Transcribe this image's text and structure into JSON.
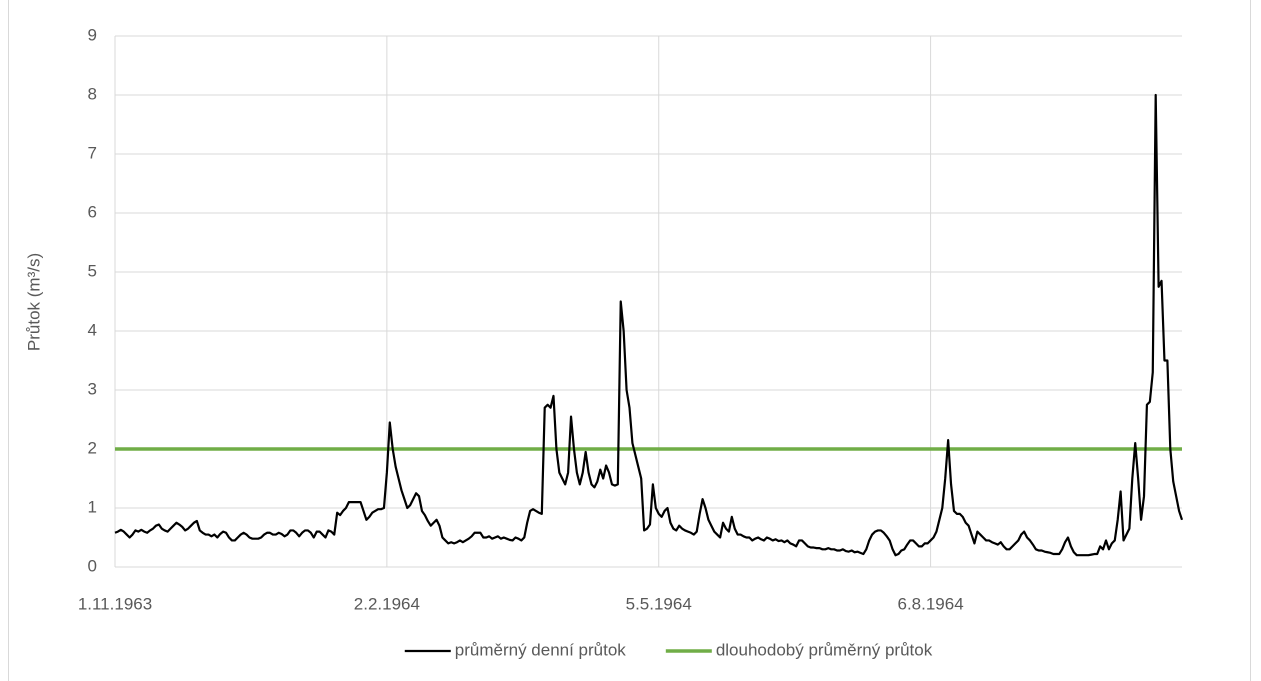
{
  "chart_data": {
    "type": "line",
    "y_label": "Průtok (m³/s)",
    "categories": [
      "1.11.1963",
      null,
      null,
      null,
      null,
      null,
      null,
      null,
      null,
      null,
      null,
      null,
      null,
      null,
      null,
      null,
      null,
      null,
      null,
      null,
      null,
      null,
      null,
      null,
      null,
      null,
      null,
      null,
      null,
      null,
      null,
      null,
      null,
      null,
      null,
      null,
      null,
      null,
      null,
      null,
      null,
      null,
      null,
      null,
      null,
      null,
      null,
      null,
      null,
      null,
      null,
      null,
      null,
      null,
      null,
      null,
      null,
      null,
      null,
      null,
      null,
      null,
      null,
      null,
      null,
      null,
      null,
      null,
      null,
      null,
      null,
      null,
      null,
      null,
      null,
      null,
      null,
      null,
      null,
      null,
      null,
      null,
      null,
      null,
      null,
      null,
      null,
      null,
      null,
      null,
      null,
      null,
      null,
      "2.2.1964",
      null,
      null,
      null,
      null,
      null,
      null,
      null,
      null,
      null,
      null,
      null,
      null,
      null,
      null,
      null,
      null,
      null,
      null,
      null,
      null,
      null,
      null,
      null,
      null,
      null,
      null,
      null,
      null,
      null,
      null,
      null,
      null,
      null,
      null,
      null,
      null,
      null,
      null,
      null,
      null,
      null,
      null,
      null,
      null,
      null,
      null,
      null,
      null,
      null,
      null,
      null,
      null,
      null,
      null,
      null,
      null,
      null,
      null,
      null,
      null,
      null,
      null,
      null,
      null,
      null,
      null,
      null,
      null,
      null,
      null,
      null,
      null,
      null,
      null,
      null,
      null,
      null,
      null,
      null,
      null,
      null,
      null,
      null,
      null,
      null,
      null,
      null,
      null,
      null,
      null,
      null,
      null,
      "5.5.1964",
      null,
      null,
      null,
      null,
      null,
      null,
      null,
      null,
      null,
      null,
      null,
      null,
      null,
      null,
      null,
      null,
      null,
      null,
      null,
      null,
      null,
      null,
      null,
      null,
      null,
      null,
      null,
      null,
      null,
      null,
      null,
      null,
      null,
      null,
      null,
      null,
      null,
      null,
      null,
      null,
      null,
      null,
      null,
      null,
      null,
      null,
      null,
      null,
      null,
      null,
      null,
      null,
      null,
      null,
      null,
      null,
      null,
      null,
      null,
      null,
      null,
      null,
      null,
      null,
      null,
      null,
      null,
      null,
      null,
      null,
      null,
      null,
      null,
      null,
      null,
      null,
      null,
      null,
      null,
      null,
      null,
      null,
      null,
      null,
      null,
      null,
      null,
      null,
      null,
      null,
      null,
      null,
      "6.8.1964",
      null,
      null,
      null,
      null,
      null,
      null,
      null,
      null,
      null,
      null,
      null,
      null,
      null,
      null,
      null,
      null,
      null,
      null,
      null,
      null,
      null,
      null,
      null,
      null,
      null,
      null,
      null,
      null,
      null,
      null,
      null,
      null,
      null,
      null,
      null,
      null,
      null,
      null,
      null,
      null,
      null,
      null,
      null,
      null,
      null,
      null,
      null,
      null,
      null,
      null,
      null,
      null,
      null,
      null,
      null,
      null,
      null,
      null,
      null,
      null,
      null,
      null,
      null,
      null,
      null,
      null,
      null,
      null,
      null,
      null,
      null,
      null,
      null,
      null,
      null,
      null,
      null,
      null,
      null,
      null,
      null,
      null,
      null,
      null,
      null,
      null
    ],
    "series": [
      {
        "name": "průměrný denní průtok",
        "color": "#000000",
        "values": [
          0.58,
          0.6,
          0.63,
          0.6,
          0.55,
          0.5,
          0.55,
          0.62,
          0.6,
          0.63,
          0.6,
          0.58,
          0.62,
          0.65,
          0.7,
          0.72,
          0.65,
          0.62,
          0.6,
          0.65,
          0.7,
          0.75,
          0.72,
          0.68,
          0.62,
          0.65,
          0.7,
          0.75,
          0.78,
          0.62,
          0.58,
          0.55,
          0.55,
          0.52,
          0.55,
          0.5,
          0.56,
          0.6,
          0.58,
          0.5,
          0.45,
          0.45,
          0.5,
          0.55,
          0.58,
          0.55,
          0.5,
          0.48,
          0.48,
          0.48,
          0.5,
          0.55,
          0.58,
          0.58,
          0.55,
          0.55,
          0.58,
          0.56,
          0.52,
          0.55,
          0.62,
          0.62,
          0.58,
          0.52,
          0.58,
          0.62,
          0.62,
          0.58,
          0.5,
          0.6,
          0.6,
          0.55,
          0.5,
          0.62,
          0.6,
          0.55,
          0.92,
          0.88,
          0.95,
          1.0,
          1.1,
          1.1,
          1.1,
          1.1,
          1.1,
          0.95,
          0.8,
          0.85,
          0.92,
          0.95,
          0.98,
          0.98,
          1.0,
          1.6,
          2.45,
          2.0,
          1.7,
          1.5,
          1.3,
          1.15,
          1.0,
          1.05,
          1.15,
          1.25,
          1.2,
          0.95,
          0.88,
          0.78,
          0.7,
          0.75,
          0.8,
          0.7,
          0.5,
          0.45,
          0.4,
          0.42,
          0.4,
          0.42,
          0.45,
          0.42,
          0.45,
          0.48,
          0.52,
          0.58,
          0.58,
          0.58,
          0.5,
          0.5,
          0.52,
          0.48,
          0.5,
          0.52,
          0.48,
          0.5,
          0.48,
          0.46,
          0.45,
          0.5,
          0.48,
          0.45,
          0.5,
          0.75,
          0.95,
          0.98,
          0.95,
          0.92,
          0.9,
          2.7,
          2.75,
          2.7,
          2.9,
          2.0,
          1.6,
          1.5,
          1.4,
          1.6,
          2.55,
          2.0,
          1.6,
          1.4,
          1.6,
          1.95,
          1.6,
          1.4,
          1.35,
          1.45,
          1.65,
          1.5,
          1.72,
          1.6,
          1.4,
          1.38,
          1.4,
          4.5,
          4.0,
          3.0,
          2.7,
          2.1,
          1.9,
          1.7,
          1.5,
          0.62,
          0.65,
          0.72,
          1.4,
          1.0,
          0.9,
          0.85,
          0.95,
          1.0,
          0.75,
          0.65,
          0.62,
          0.7,
          0.65,
          0.62,
          0.6,
          0.58,
          0.55,
          0.6,
          0.9,
          1.15,
          1.0,
          0.8,
          0.7,
          0.6,
          0.55,
          0.5,
          0.75,
          0.65,
          0.6,
          0.85,
          0.65,
          0.55,
          0.55,
          0.52,
          0.5,
          0.5,
          0.45,
          0.48,
          0.5,
          0.47,
          0.45,
          0.5,
          0.48,
          0.45,
          0.47,
          0.44,
          0.45,
          0.42,
          0.45,
          0.4,
          0.38,
          0.35,
          0.45,
          0.45,
          0.4,
          0.35,
          0.33,
          0.33,
          0.32,
          0.32,
          0.3,
          0.3,
          0.32,
          0.3,
          0.3,
          0.28,
          0.28,
          0.3,
          0.27,
          0.26,
          0.28,
          0.25,
          0.26,
          0.24,
          0.22,
          0.3,
          0.45,
          0.55,
          0.6,
          0.62,
          0.62,
          0.58,
          0.52,
          0.45,
          0.3,
          0.2,
          0.22,
          0.28,
          0.3,
          0.38,
          0.45,
          0.45,
          0.4,
          0.35,
          0.35,
          0.4,
          0.4,
          0.45,
          0.5,
          0.6,
          0.8,
          1.0,
          1.5,
          2.15,
          1.4,
          0.95,
          0.9,
          0.9,
          0.85,
          0.75,
          0.7,
          0.55,
          0.4,
          0.6,
          0.55,
          0.5,
          0.45,
          0.45,
          0.42,
          0.4,
          0.38,
          0.42,
          0.35,
          0.3,
          0.3,
          0.35,
          0.4,
          0.45,
          0.55,
          0.6,
          0.5,
          0.45,
          0.38,
          0.3,
          0.28,
          0.28,
          0.26,
          0.25,
          0.24,
          0.22,
          0.22,
          0.22,
          0.3,
          0.42,
          0.5,
          0.35,
          0.25,
          0.2,
          0.2,
          0.2,
          0.2,
          0.2,
          0.21,
          0.22,
          0.22,
          0.35,
          0.3,
          0.45,
          0.3,
          0.4,
          0.45,
          0.8,
          1.28,
          0.45,
          0.55,
          0.65,
          1.5,
          2.1,
          1.5,
          0.8,
          1.2,
          2.75,
          2.8,
          3.3,
          8.0,
          4.75,
          4.85,
          3.5,
          3.5,
          2.0,
          1.45,
          1.2,
          0.95,
          0.8
        ]
      }
    ],
    "reference_line": {
      "name": "dlouhodobý průměrný průtok",
      "color": "#70ad47",
      "value": 2
    },
    "ylim": [
      0,
      9
    ],
    "yticks": [
      0,
      1,
      2,
      3,
      4,
      5,
      6,
      7,
      8,
      9
    ],
    "grid": true,
    "legend": "bottom"
  }
}
